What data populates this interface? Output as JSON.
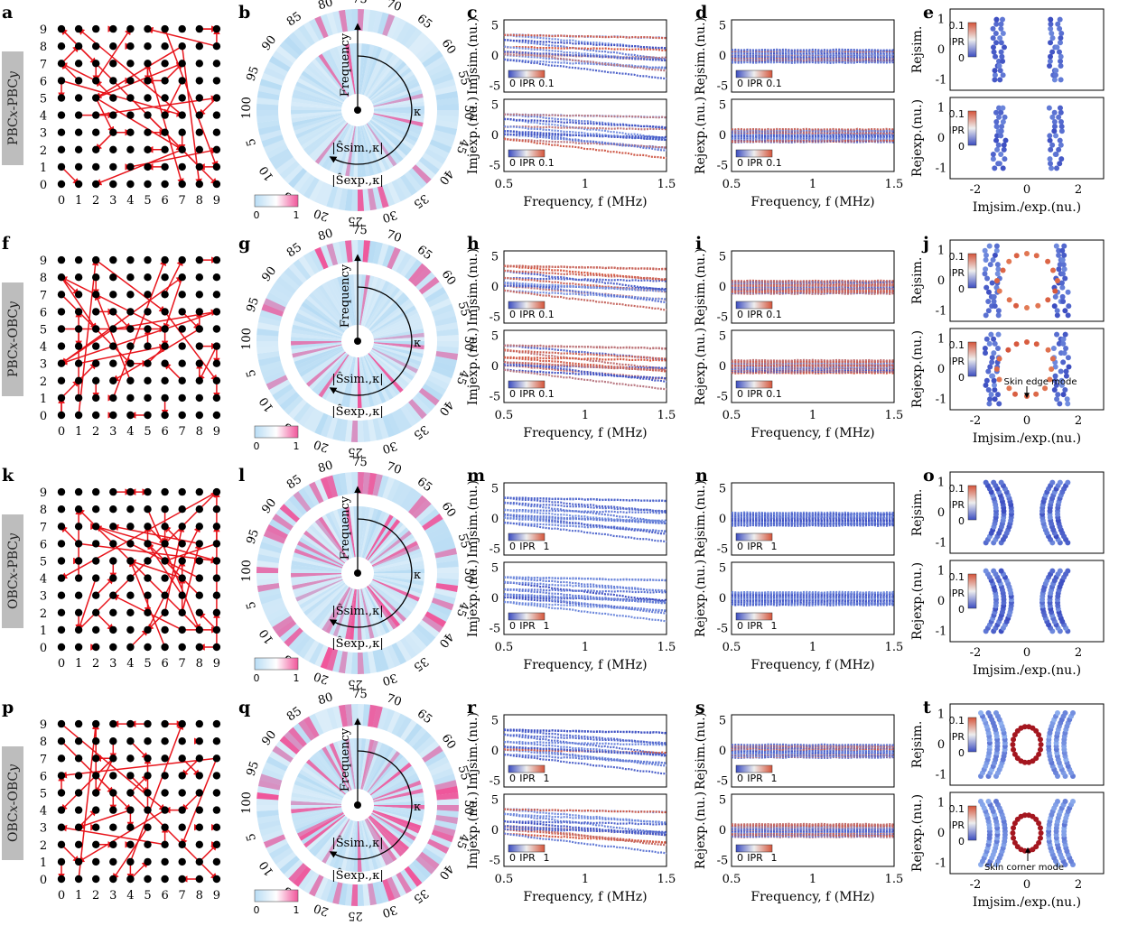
{
  "rows": [
    {
      "name": "PBCx-PBCy",
      "label_left": "PBC",
      "label_x": "x",
      "label_mid": "-PBC",
      "label_y": "y",
      "panels": [
        "a",
        "b",
        "c",
        "d",
        "e"
      ],
      "ipr_max": "0.1",
      "ipr_max_e": "0.1",
      "hi": 0.25,
      "pink": 0.15,
      "ann": "",
      "ann2": ""
    },
    {
      "name": "PBCx-OBCy",
      "label_left": "PBC",
      "label_x": "x",
      "label_mid": "-OBC",
      "label_y": "y",
      "panels": [
        "f",
        "g",
        "h",
        "i",
        "j"
      ],
      "ipr_max": "0.1",
      "ipr_max_e": "0.1",
      "hi": 0.55,
      "pink": 0.25,
      "ann": "Skin edge mode",
      "ann2": ""
    },
    {
      "name": "OBCx-PBCy",
      "label_left": "OBC",
      "label_x": "x",
      "label_mid": "-PBC",
      "label_y": "y",
      "panels": [
        "k",
        "l",
        "m",
        "n",
        "o"
      ],
      "ipr_max": "1",
      "ipr_max_e": "0.1",
      "hi": 0.0,
      "pink": 0.45,
      "ann": "",
      "ann2": ""
    },
    {
      "name": "OBCx-OBCy",
      "label_left": "OBC",
      "label_x": "x",
      "label_mid": "-OBC",
      "label_y": "y",
      "panels": [
        "p",
        "q",
        "r",
        "s",
        "t"
      ],
      "ipr_max": "1",
      "ipr_max_e": "0.1",
      "hi": 0.35,
      "pink": 0.6,
      "ann": "",
      "ann2": "Skin corner mode"
    }
  ],
  "lattice": {
    "ticks": [
      "0",
      "1",
      "2",
      "3",
      "4",
      "5",
      "6",
      "7",
      "8",
      "9"
    ],
    "node_color": "#000000",
    "link_color": "#e8141b"
  },
  "ring": {
    "numbers": [
      "75",
      "70",
      "65",
      "60",
      "55",
      "50",
      "45",
      "40",
      "35",
      "30",
      "25",
      "20",
      "15",
      "10",
      "5",
      "100",
      "95",
      "90",
      "85",
      "80"
    ],
    "center_label": "Frequency",
    "kappa": "κ",
    "inner_label": "|Ŝsim.,κ|",
    "outer_label": "|Ŝexp.,κ|",
    "cbar_min": "0",
    "cbar_max": "1",
    "light": "#b8dcf4",
    "pink": "#f0559a"
  },
  "spectra": {
    "xticks": [
      "0.5",
      "1",
      "1.5"
    ],
    "xlabel": "Frequency, f (MHz)",
    "yticks": [
      "5",
      "0",
      "-5"
    ],
    "im_sim": "Imjsim.(nu.)",
    "im_exp": "Imjexp.(nu.)",
    "re_sim": "Rejsim.(nu.)",
    "re_exp": "Rejexp.(nu.)",
    "ipr_label": "IPR",
    "ipr_min": "0"
  },
  "eig": {
    "xticks": [
      "-2",
      "0",
      "2"
    ],
    "yticks": [
      "1",
      "0",
      "-1"
    ],
    "xlabel": "Imjsim./exp.(nu.)",
    "ylabel_sim": "Rejsim.",
    "ylabel_exp": "Rejexp.(nu.)",
    "ipr_label": "IPR",
    "ipr_min": "0"
  },
  "colors": {
    "blue": "#3b4cc0",
    "lightblue": "#8fb0ef",
    "red": "#d5543a",
    "darkred": "#a4161f"
  }
}
